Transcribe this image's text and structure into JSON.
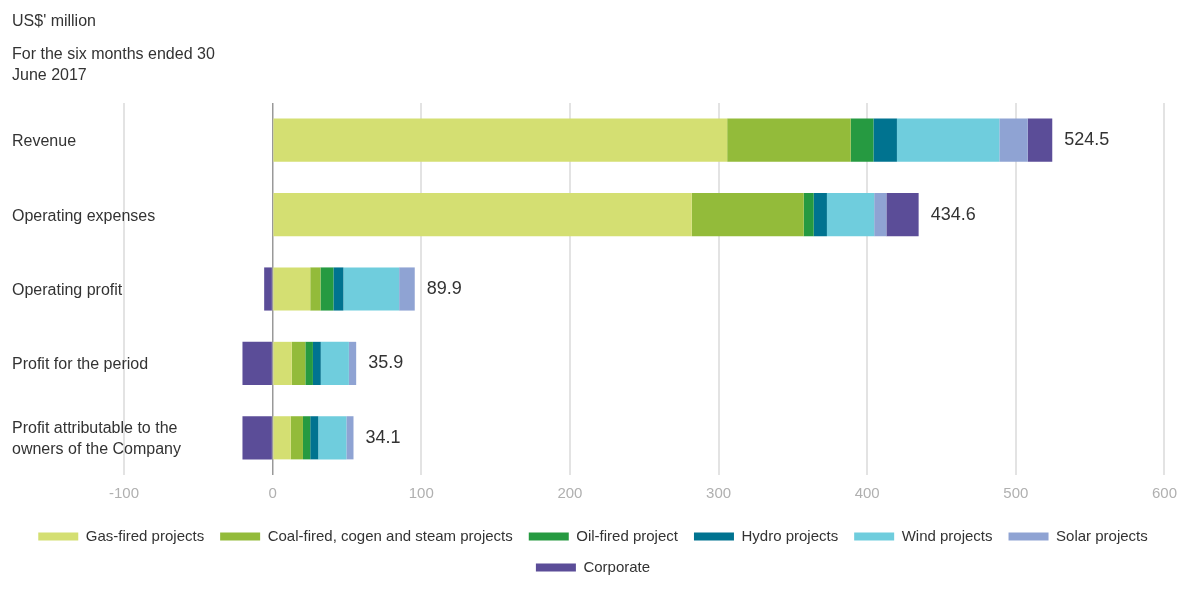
{
  "chart_data": {
    "type": "bar",
    "orientation": "horizontal",
    "stacked": true,
    "title": "US$' million",
    "subtitle": "For the six months ended 30 June 2017",
    "categories": [
      "Revenue",
      "Operating expenses",
      "Operating profit",
      "Profit for the period",
      "Profit attributable to the owners of the Company"
    ],
    "series": [
      {
        "name": "Gas-fired projects",
        "color": "#d4df72",
        "values": [
          305.8,
          282,
          25.3,
          12.9,
          12.2
        ]
      },
      {
        "name": "Coal-fired, cogen and steam projects",
        "color": "#93bb3a",
        "values": [
          83.1,
          75.3,
          6.9,
          9.1,
          8.2
        ]
      },
      {
        "name": "Oil-fired project",
        "color": "#269a41",
        "values": [
          15.3,
          6.7,
          8.7,
          5.1,
          4.9
        ]
      },
      {
        "name": "Hydro projects",
        "color": "#007390",
        "values": [
          15.8,
          8.9,
          6.7,
          5.3,
          5.4
        ]
      },
      {
        "name": "Wind projects",
        "color": "#6fcddd",
        "values": [
          68.9,
          31.8,
          37.5,
          18.9,
          18.9
        ]
      },
      {
        "name": "Solar projects",
        "color": "#8fa3d3",
        "values": [
          19.1,
          8.2,
          10.5,
          4.9,
          4.8
        ]
      },
      {
        "name": "Corporate",
        "color": "#5b4d98",
        "values": [
          16.5,
          21.7,
          -5.7,
          -20.3,
          -20.3
        ]
      }
    ],
    "totals": [
      "524.5",
      "434.6",
      "89.9",
      "35.9",
      "34.1"
    ],
    "xlim": [
      -100,
      600
    ],
    "xticks": [
      -100,
      0,
      100,
      200,
      300,
      400,
      500,
      600
    ],
    "grid": "x",
    "legend": "bottom"
  }
}
